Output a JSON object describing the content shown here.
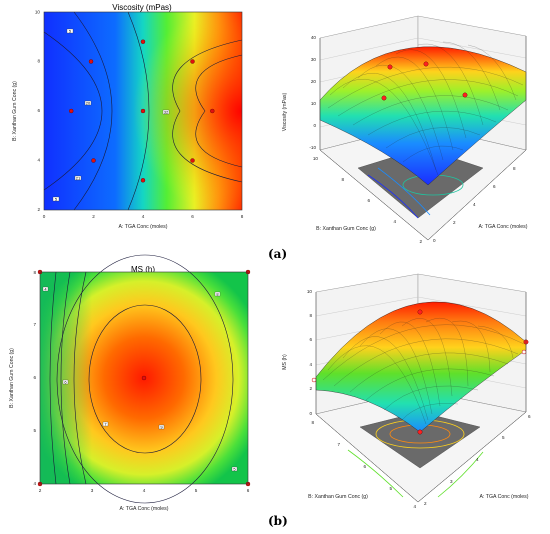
{
  "labels": {
    "a": "(a)",
    "b": "(b)"
  },
  "chart_data": [
    {
      "type": "heatmap",
      "title": "Viscosity (mPas)",
      "xlabel": "A: TGA Conc (moles)",
      "ylabel": "B: Xanthan Gum Conc (g)",
      "xlim": [
        0,
        8
      ],
      "ylim": [
        2,
        10
      ],
      "xticks": [
        "0",
        "2",
        "4",
        "6",
        "8"
      ],
      "yticks": [
        "2",
        "4",
        "6",
        "8",
        "10"
      ],
      "contour_labels": [
        "5",
        "20",
        "32",
        "21",
        "5"
      ],
      "design_points": [
        [
          4.0,
          8.8
        ],
        [
          1.9,
          8.0
        ],
        [
          6.0,
          8.0
        ],
        [
          1.1,
          6.0
        ],
        [
          4.0,
          6.0
        ],
        [
          6.8,
          6.0
        ],
        [
          2.0,
          4.0
        ],
        [
          6.0,
          4.0
        ],
        [
          4.0,
          3.2
        ]
      ]
    },
    {
      "type": "surface3d",
      "zlabel": "Viscosity (mPas)",
      "xlabel": "A: TGA Conc (moles)",
      "ylabel": "B: Xanthan Gum Conc (g)",
      "zticks": [
        "-10",
        "0",
        "10",
        "20",
        "30",
        "40"
      ],
      "xticks": [
        "0",
        "2",
        "4",
        "6",
        "8"
      ],
      "yticks": [
        "10",
        "8",
        "6",
        "4",
        "2"
      ],
      "zlim": [
        -10,
        40
      ]
    },
    {
      "type": "heatmap",
      "title": "MS (h)",
      "xlabel": "A: TGA Conc (moles)",
      "ylabel": "B: Xanthan Gum Conc (g)",
      "xlim": [
        2,
        6
      ],
      "ylim": [
        4,
        8
      ],
      "xticks": [
        "2",
        "3",
        "4",
        "5",
        "6"
      ],
      "yticks": [
        "4",
        "5",
        "6",
        "7",
        "8"
      ],
      "contour_labels": [
        "4",
        "6",
        "7",
        "8",
        "9",
        "5"
      ],
      "design_points": [
        [
          2,
          8
        ],
        [
          6,
          8
        ],
        [
          2,
          4
        ],
        [
          6,
          4
        ],
        [
          4,
          6
        ]
      ]
    },
    {
      "type": "surface3d",
      "zlabel": "MS (h)",
      "xlabel": "A: TGA Conc (moles)",
      "ylabel": "B: Xanthan Gum Conc (g)",
      "zticks": [
        "0",
        "2",
        "4",
        "6",
        "8",
        "10"
      ],
      "xticks": [
        "2",
        "3",
        "4",
        "5",
        "6"
      ],
      "yticks": [
        "8",
        "7",
        "6",
        "5",
        "4"
      ],
      "zlim": [
        0,
        10
      ]
    }
  ]
}
